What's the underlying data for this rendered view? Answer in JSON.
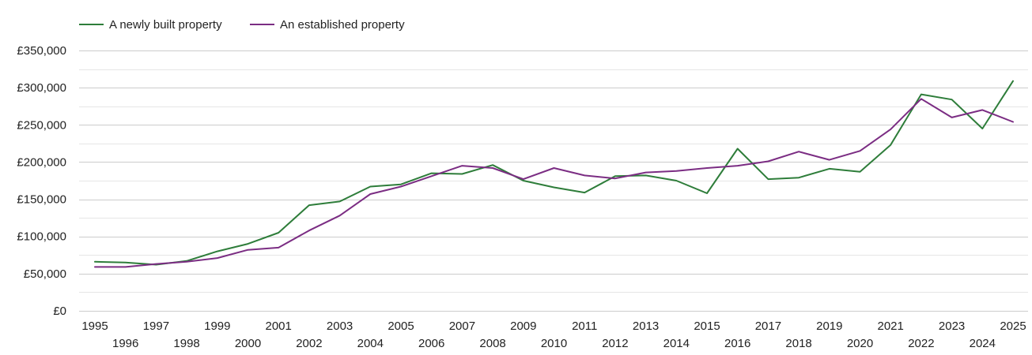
{
  "chart_data": {
    "type": "line",
    "title": "",
    "xlabel": "",
    "ylabel": "",
    "legend_position": "top-left",
    "grid": true,
    "x": [
      1995,
      1996,
      1997,
      1998,
      1999,
      2000,
      2001,
      2002,
      2003,
      2004,
      2005,
      2006,
      2007,
      2008,
      2009,
      2010,
      2011,
      2012,
      2013,
      2014,
      2015,
      2016,
      2017,
      2018,
      2019,
      2020,
      2021,
      2022,
      2023,
      2024,
      2025
    ],
    "x_tick_labels": [
      "1995",
      "1996",
      "1997",
      "1998",
      "1999",
      "2000",
      "2001",
      "2002",
      "2003",
      "2004",
      "2005",
      "2006",
      "2007",
      "2008",
      "2009",
      "2010",
      "2011",
      "2012",
      "2013",
      "2014",
      "2015",
      "2016",
      "2017",
      "2018",
      "2019",
      "2020",
      "2021",
      "2022",
      "2023",
      "2024",
      "2025"
    ],
    "ylim": [
      0,
      350000
    ],
    "y_ticks": [
      0,
      50000,
      100000,
      150000,
      200000,
      250000,
      300000,
      350000
    ],
    "y_tick_labels": [
      "£0",
      "£50,000",
      "£100,000",
      "£150,000",
      "£200,000",
      "£250,000",
      "£300,000",
      "£350,000"
    ],
    "series": [
      {
        "name": "A newly built property",
        "color": "#2e7d3a",
        "values": [
          66000,
          65000,
          62000,
          67000,
          80000,
          90000,
          105000,
          142000,
          147000,
          167000,
          170000,
          185000,
          184000,
          196000,
          175000,
          166000,
          159000,
          181000,
          182000,
          175000,
          158000,
          218000,
          177000,
          179000,
          191000,
          187000,
          223000,
          291000,
          284000,
          245000,
          309000
        ]
      },
      {
        "name": "An established property",
        "color": "#7b2d83",
        "values": [
          59000,
          59000,
          63000,
          66000,
          71000,
          82000,
          85000,
          108000,
          128000,
          157000,
          167000,
          181000,
          195000,
          192000,
          177000,
          192000,
          182000,
          178000,
          186000,
          188000,
          192000,
          195000,
          201000,
          214000,
          203000,
          215000,
          244000,
          285000,
          260000,
          270000,
          254000
        ]
      }
    ]
  }
}
